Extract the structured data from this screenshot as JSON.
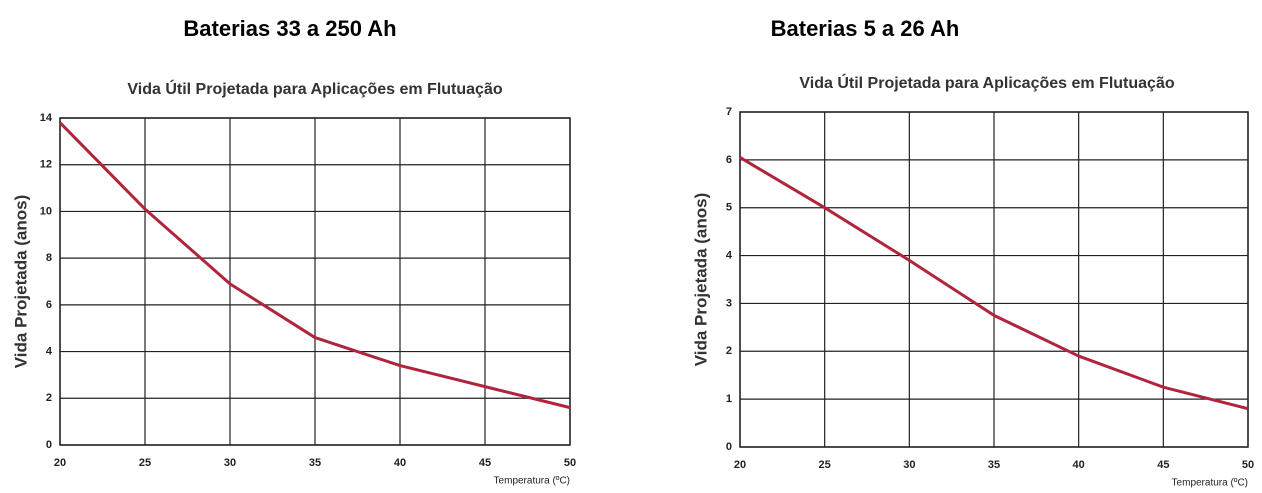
{
  "chart_data": [
    {
      "type": "line",
      "heading": "Baterias 33 a 250 Ah",
      "title": "Vida Útil Projetada para Aplicações em Flutuação",
      "xlabel": "Temperatura (ºC)",
      "ylabel": "Vida Projetada (anos)",
      "x": [
        20,
        25,
        30,
        35,
        40,
        45,
        50
      ],
      "series": [
        {
          "color": "#b0243c",
          "values": [
            13.8,
            10.1,
            6.9,
            4.6,
            3.4,
            2.5,
            1.6
          ]
        }
      ],
      "xlim": [
        20,
        50
      ],
      "xticks": [
        20,
        25,
        30,
        35,
        40,
        45,
        50
      ],
      "ylim": [
        0,
        14
      ],
      "yticks": [
        0,
        2,
        4,
        6,
        8,
        10,
        12,
        14
      ],
      "grid": true
    },
    {
      "type": "line",
      "heading": "Baterias 5 a 26 Ah",
      "title": "Vida Útil Projetada para Aplicações em Flutuação",
      "xlabel": "Temperatura (ºC)",
      "ylabel": "Vida Projetada (anos)",
      "x": [
        20,
        25,
        30,
        35,
        40,
        45,
        50
      ],
      "series": [
        {
          "color": "#b0243c",
          "values": [
            6.05,
            5.0,
            3.9,
            2.75,
            1.9,
            1.25,
            0.8
          ]
        }
      ],
      "xlim": [
        20,
        50
      ],
      "xticks": [
        20,
        25,
        30,
        35,
        40,
        45,
        50
      ],
      "ylim": [
        0,
        7
      ],
      "yticks": [
        0,
        1,
        2,
        3,
        4,
        5,
        6,
        7
      ],
      "grid": true
    }
  ]
}
